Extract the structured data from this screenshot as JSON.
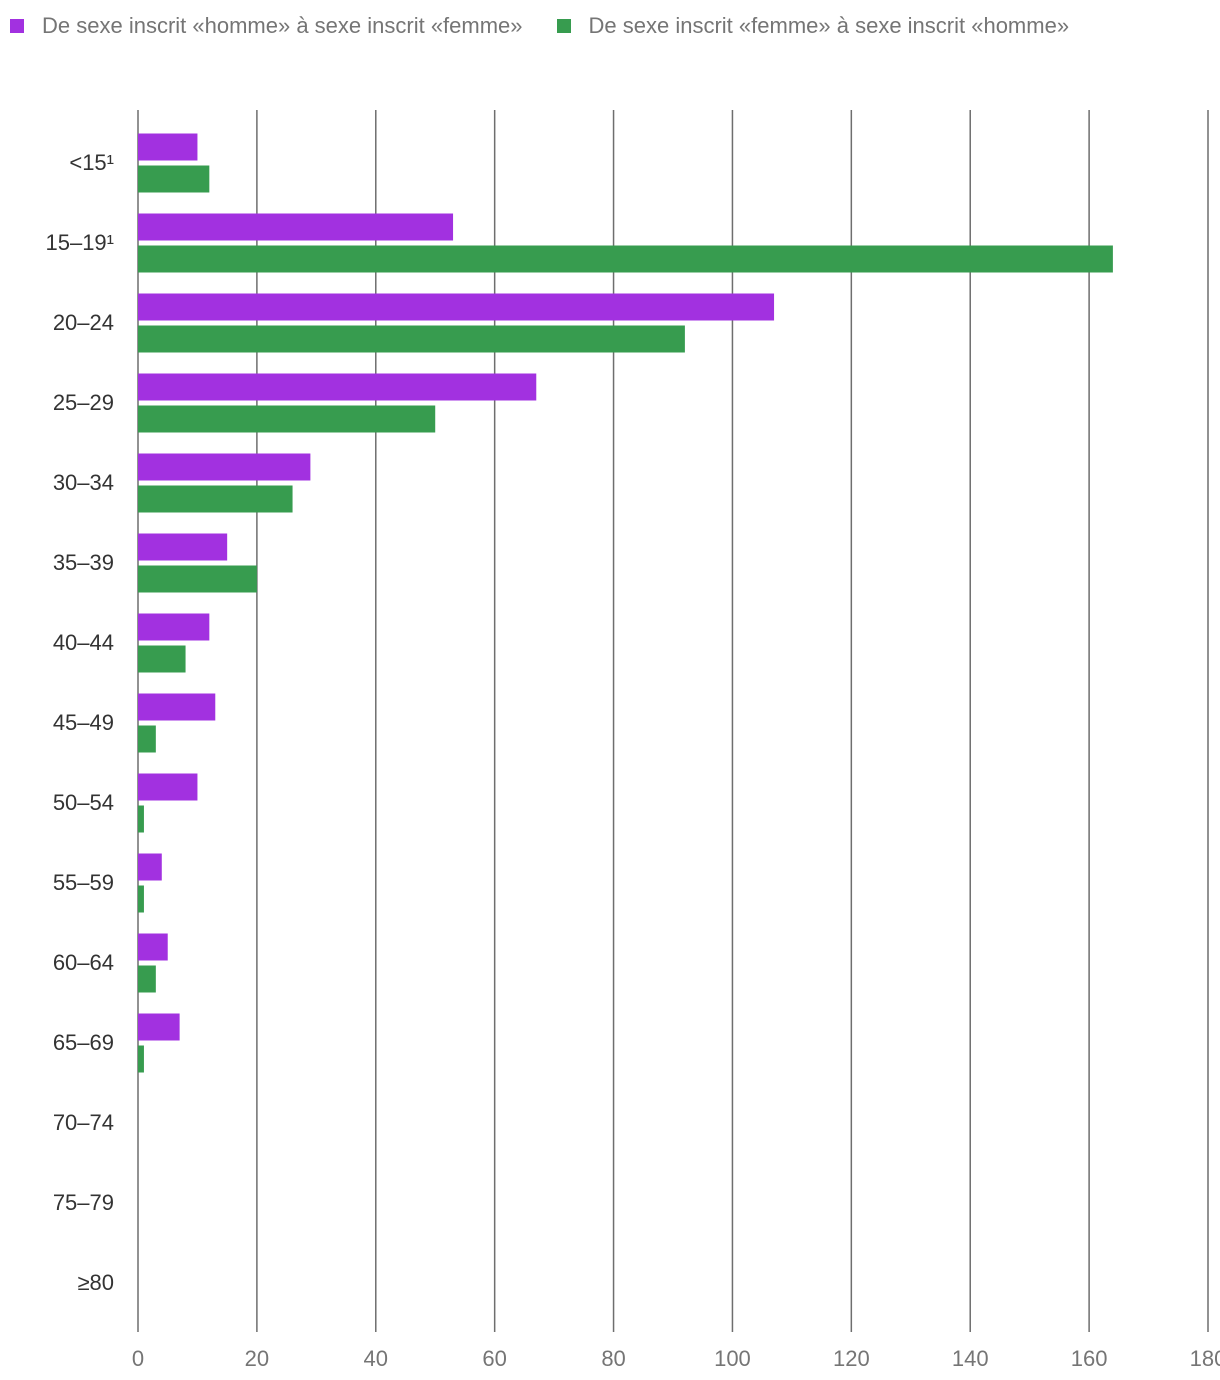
{
  "chart_data": {
    "type": "bar",
    "orientation": "horizontal",
    "title": "",
    "xlabel": "",
    "ylabel": "",
    "categories": [
      "<15¹",
      "15–19¹",
      "20–24",
      "25–29",
      "30–34",
      "35–39",
      "40–44",
      "45–49",
      "50–54",
      "55–59",
      "60–64",
      "65–69",
      "70–74",
      "75–79",
      "≥80"
    ],
    "series": [
      {
        "name": "De sexe inscrit «homme» à sexe inscrit «femme»",
        "color": "#a231e0",
        "values": [
          10,
          53,
          107,
          67,
          29,
          15,
          12,
          13,
          10,
          4,
          5,
          7,
          0,
          0,
          0
        ]
      },
      {
        "name": "De sexe inscrit «femme» à sexe inscrit «homme»",
        "color": "#379c4f",
        "values": [
          12,
          164,
          92,
          50,
          26,
          20,
          8,
          3,
          1,
          1,
          3,
          1,
          0,
          0,
          0
        ]
      }
    ],
    "xlim": [
      0,
      180
    ],
    "xticks": [
      "0",
      "20",
      "40",
      "60",
      "80",
      "100",
      "120",
      "140",
      "160",
      "180"
    ],
    "grid": true,
    "legend_position": "top-left"
  }
}
